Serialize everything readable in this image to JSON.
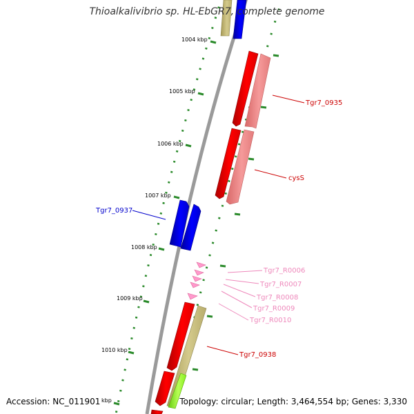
{
  "header": {
    "title": "Thioalkalivibrio sp. HL-EbGR7, complete genome"
  },
  "footer": {
    "accession": "Accession: NC_011901",
    "summary": "Topology: circular; Length: 3,464,554 bp; Genes: 3,330"
  },
  "ruler": {
    "unit": "kbp",
    "labels": [
      "1004 kbp",
      "1005 kbp",
      "1006 kbp",
      "1007 kbp",
      "1008 kbp",
      "1009 kbp",
      "1010 kbp",
      "kbp"
    ]
  },
  "genes": [
    {
      "label": "Tgr7_0935",
      "color": "#cc0000"
    },
    {
      "label": "cysS",
      "color": "#cc0000"
    },
    {
      "label": "Tgr7_0937",
      "color": "#0000cc"
    },
    {
      "label": "Tgr7_R0006",
      "color": "#ee88bb"
    },
    {
      "label": "Tgr7_R0007",
      "color": "#ee88bb"
    },
    {
      "label": "Tgr7_R0008",
      "color": "#ee88bb"
    },
    {
      "label": "Tgr7_R0009",
      "color": "#ee88bb"
    },
    {
      "label": "Tgr7_R0010",
      "color": "#ee88bb"
    },
    {
      "label": "Tgr7_0938",
      "color": "#cc0000"
    }
  ],
  "colors": {
    "cds": "#ff0000",
    "cds_faded": "#f08080",
    "cds_blue": "#0000ee",
    "rna": "#ff99cc",
    "olive": "#c8bd7a",
    "lime": "#99ff33",
    "backbone": "#888888",
    "tick": "#228822"
  }
}
